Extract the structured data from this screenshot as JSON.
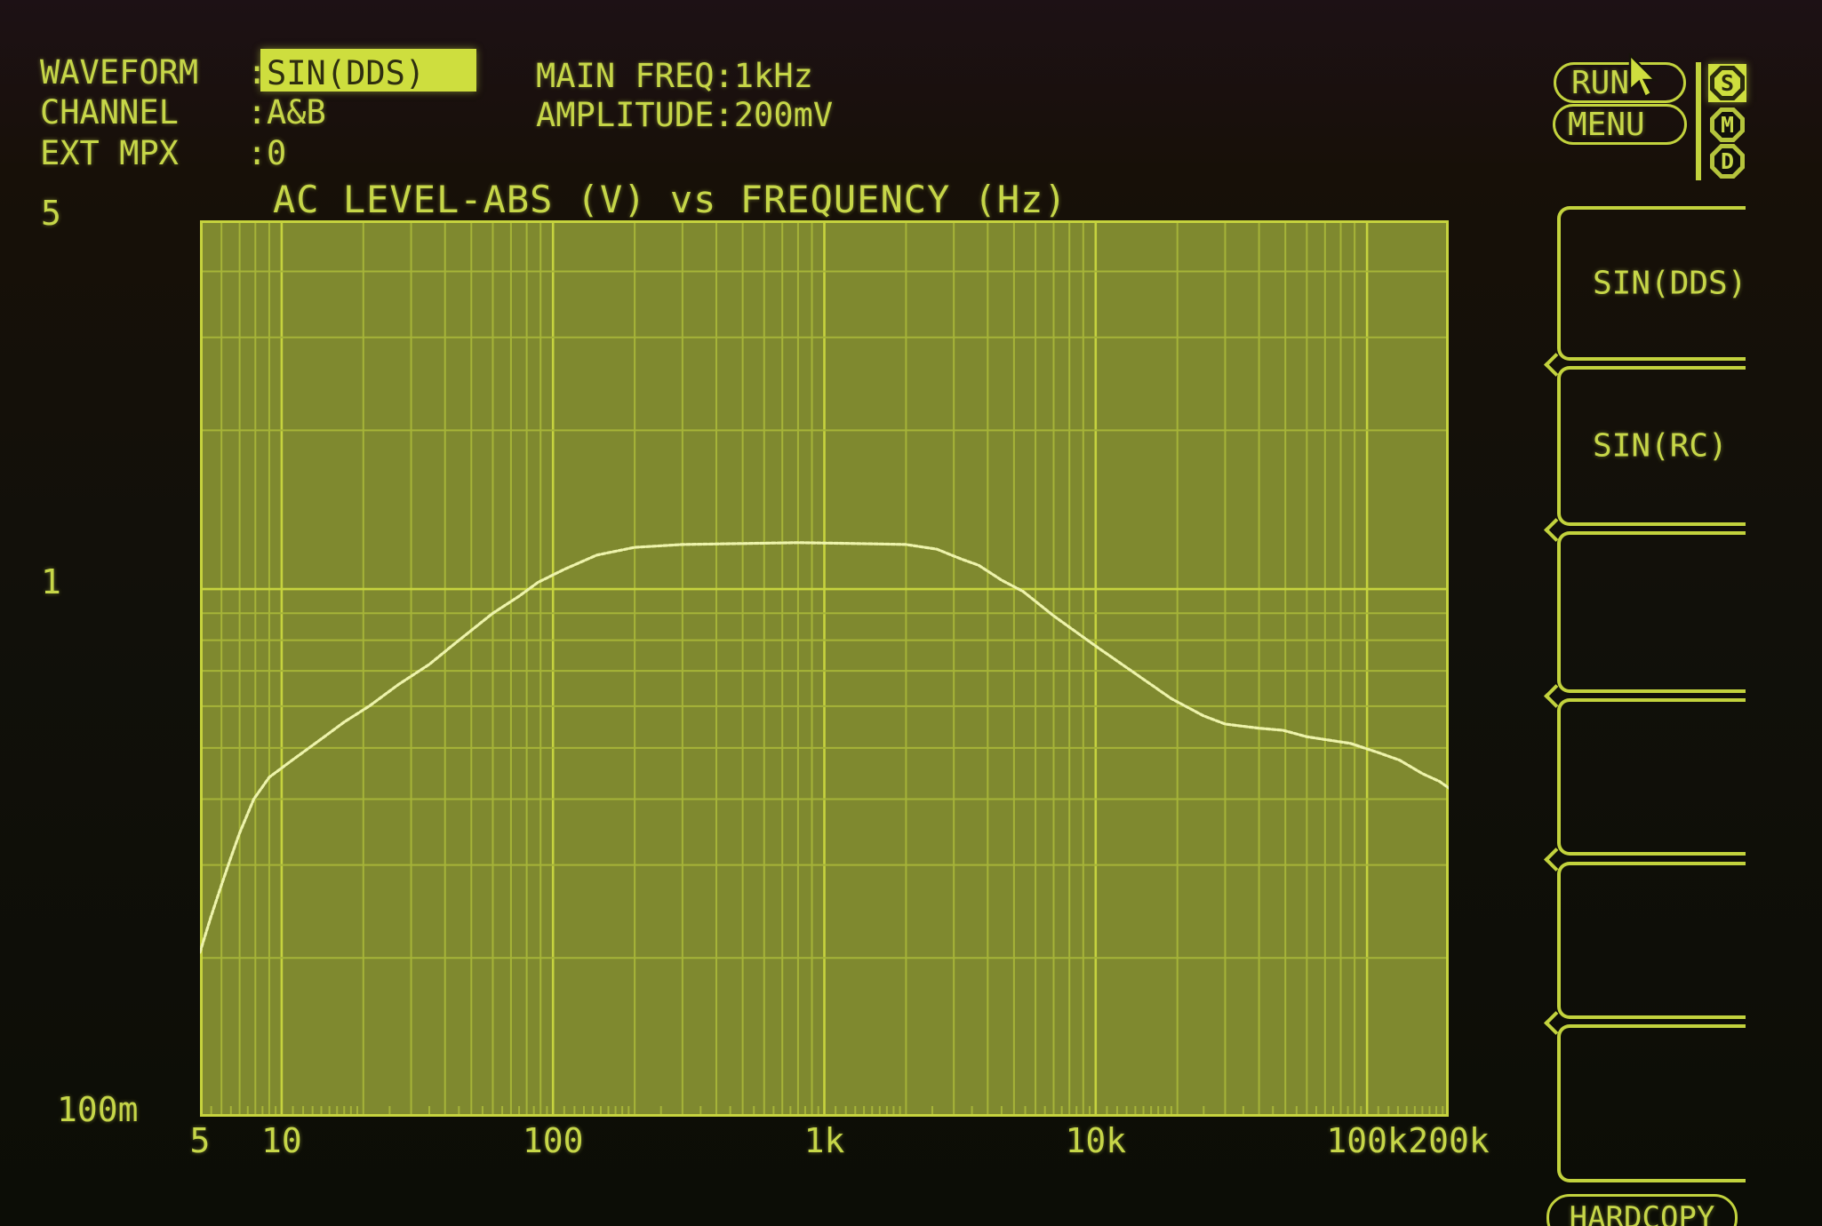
{
  "top_left": {
    "rows": [
      {
        "label": "WAVEFORM",
        "sep": ":",
        "value": "SIN(DDS)",
        "highlighted": true
      },
      {
        "label": "CHANNEL",
        "sep": ":",
        "value": "A&B"
      },
      {
        "label": "EXT MPX",
        "sep": ":",
        "value": "0"
      }
    ]
  },
  "top_mid": {
    "rows": [
      {
        "label": "MAIN FREQ:",
        "value": "1kHz"
      },
      {
        "label": "AMPLITUDE:",
        "value": "200mV"
      }
    ]
  },
  "controls": {
    "run_label": "RUN",
    "menu_label": "MENU",
    "hardcopy_label": "HARDCOPY",
    "cursor_icon": "mouse-pointer",
    "badges": [
      {
        "letter": "S",
        "active": true
      },
      {
        "letter": "M",
        "active": false
      },
      {
        "letter": "D",
        "active": false
      }
    ],
    "softkeys": [
      {
        "label": "SIN(DDS)"
      },
      {
        "label": "SIN(RC)"
      },
      {
        "label": ""
      },
      {
        "label": ""
      },
      {
        "label": ""
      },
      {
        "label": ""
      }
    ]
  },
  "colors": {
    "text": "#c6d648",
    "highlight_bg": "#cede3e",
    "highlight_text": "#2e2e10",
    "plot_bg": "#7f892f",
    "grid_minor": "#a6b438",
    "grid_major": "#c6d33e",
    "curve": "#edf3ab",
    "outline": "#c2d23d"
  },
  "chart_data": {
    "type": "line",
    "title": "AC LEVEL-ABS (V) vs FREQUENCY (Hz)",
    "xlabel": "FREQUENCY (Hz)",
    "ylabel": "AC LEVEL-ABS (V)",
    "x_axis": {
      "scale": "log",
      "min": 5,
      "max": 200000,
      "ticks": [
        {
          "label": "5",
          "value": 5
        },
        {
          "label": "10",
          "value": 10
        },
        {
          "label": "100",
          "value": 100
        },
        {
          "label": "1k",
          "value": 1000
        },
        {
          "label": "10k",
          "value": 10000
        },
        {
          "label": "100k",
          "value": 100000
        },
        {
          "label": "200k",
          "value": 200000
        }
      ]
    },
    "y_axis": {
      "scale": "log",
      "min": 0.1,
      "max": 5,
      "ticks": [
        {
          "label": "5",
          "value": 5
        },
        {
          "label": "1",
          "value": 1
        },
        {
          "label": "100m",
          "value": 0.1
        }
      ]
    },
    "grid": "log-log, minor lines 2-9 per decade, grid on",
    "legend": "none",
    "series": [
      {
        "name": "AC LEVEL-ABS (V)",
        "points": [
          [
            5,
            0.205
          ],
          [
            5.5,
            0.24
          ],
          [
            6,
            0.275
          ],
          [
            6.5,
            0.31
          ],
          [
            7,
            0.345
          ],
          [
            7.9,
            0.4
          ],
          [
            9,
            0.44
          ],
          [
            11,
            0.475
          ],
          [
            14,
            0.52
          ],
          [
            17,
            0.56
          ],
          [
            21,
            0.6
          ],
          [
            27,
            0.66
          ],
          [
            35,
            0.72
          ],
          [
            45,
            0.8
          ],
          [
            60,
            0.9
          ],
          [
            75,
            0.97
          ],
          [
            88,
            1.03
          ],
          [
            110,
            1.09
          ],
          [
            145,
            1.16
          ],
          [
            200,
            1.2
          ],
          [
            300,
            1.215
          ],
          [
            500,
            1.22
          ],
          [
            800,
            1.225
          ],
          [
            1300,
            1.22
          ],
          [
            2000,
            1.215
          ],
          [
            2600,
            1.19
          ],
          [
            3200,
            1.14
          ],
          [
            3700,
            1.11
          ],
          [
            4500,
            1.04
          ],
          [
            5400,
            0.99
          ],
          [
            7000,
            0.89
          ],
          [
            10000,
            0.78
          ],
          [
            13000,
            0.71
          ],
          [
            19000,
            0.62
          ],
          [
            25000,
            0.575
          ],
          [
            30000,
            0.555
          ],
          [
            40000,
            0.545
          ],
          [
            49000,
            0.54
          ],
          [
            60000,
            0.525
          ],
          [
            87000,
            0.51
          ],
          [
            110000,
            0.49
          ],
          [
            132000,
            0.474
          ],
          [
            160000,
            0.447
          ],
          [
            185000,
            0.432
          ],
          [
            200000,
            0.42
          ]
        ]
      }
    ]
  }
}
